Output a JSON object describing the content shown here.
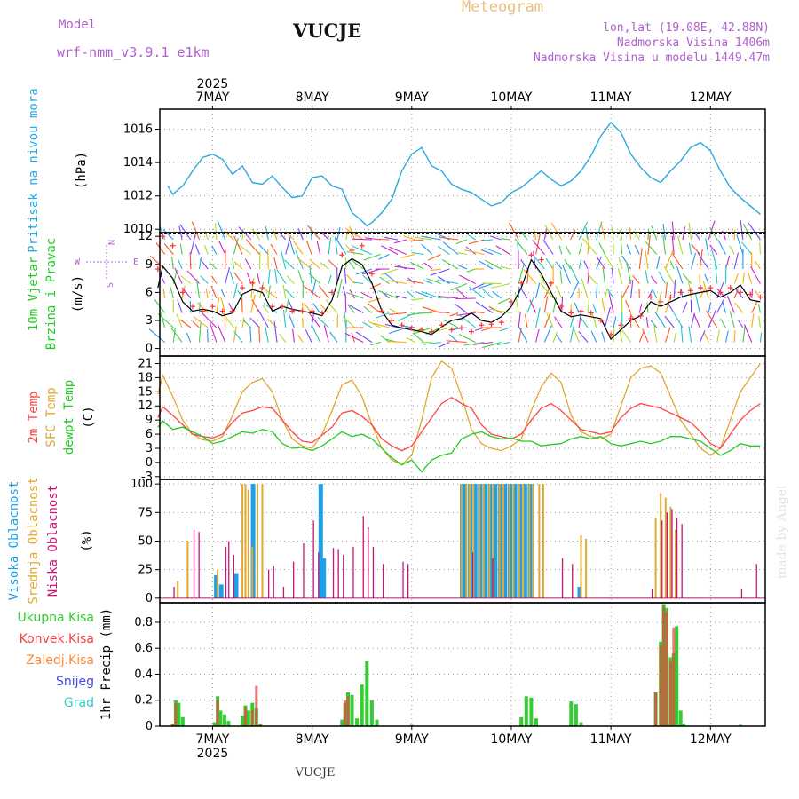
{
  "header": {
    "model_label": "Model",
    "model_name": "wrf-nmm_v3.9.1 e1km",
    "station": "VUCJE",
    "product": "Meteogram",
    "coords": "lon,lat (19.08E, 42.88N)",
    "elevation": "Nadmorska Visina 1406m",
    "elevation_model": "Nadmorska Visina u modelu 1449.47m",
    "footer_station": "VUCJE",
    "credit": "made by Angel"
  },
  "colors": {
    "pressure": "#29a9e0",
    "wind_speed": "#000000",
    "gust": "#ff3333",
    "temp2m": "#ff4444",
    "sfc_temp": "#e0a830",
    "dewpoint": "#22cc22",
    "high_cloud": "#1ea0e8",
    "mid_cloud": "#e0a830",
    "low_cloud": "#cc1177",
    "total_precip": "#33cc33",
    "conv_precip": "#ee4444",
    "frozen_precip": "#ff8833",
    "snow": "#4444ee",
    "hail": "#33cccc"
  },
  "chart_data": [
    {
      "type": "line",
      "panel": "pressure",
      "ylabel": "Pritisak na nivou mora",
      "units": "(hPa)",
      "ylim": [
        1009.8,
        1017.2
      ],
      "yticks": [
        1010,
        1012,
        1014,
        1016
      ],
      "x": [
        6.55,
        6.6,
        6.7,
        6.8,
        6.9,
        7.0,
        7.1,
        7.2,
        7.3,
        7.4,
        7.5,
        7.6,
        7.7,
        7.8,
        7.9,
        8.0,
        8.1,
        8.2,
        8.3,
        8.4,
        8.5,
        8.55,
        8.6,
        8.7,
        8.8,
        8.9,
        9.0,
        9.1,
        9.2,
        9.3,
        9.4,
        9.5,
        9.6,
        9.7,
        9.8,
        9.9,
        10.0,
        10.1,
        10.2,
        10.3,
        10.4,
        10.5,
        10.6,
        10.7,
        10.8,
        10.9,
        11.0,
        11.1,
        11.2,
        11.3,
        11.4,
        11.5,
        11.6,
        11.7,
        11.8,
        11.9,
        12.0,
        12.1,
        12.2,
        12.3,
        12.4,
        12.5
      ],
      "values": [
        1012.6,
        1012.1,
        1012.6,
        1013.5,
        1014.3,
        1014.5,
        1014.2,
        1013.3,
        1013.8,
        1012.8,
        1012.7,
        1013.2,
        1012.5,
        1011.9,
        1012.0,
        1013.1,
        1013.2,
        1012.6,
        1012.4,
        1011.0,
        1010.5,
        1010.2,
        1010.4,
        1011.0,
        1011.8,
        1013.5,
        1014.5,
        1014.9,
        1013.8,
        1013.5,
        1012.7,
        1012.4,
        1012.2,
        1011.8,
        1011.4,
        1011.6,
        1012.2,
        1012.5,
        1013.0,
        1013.5,
        1013.0,
        1012.6,
        1012.9,
        1013.5,
        1014.4,
        1015.6,
        1016.4,
        1015.8,
        1014.5,
        1013.7,
        1013.1,
        1012.8,
        1013.5,
        1014.1,
        1014.9,
        1015.2,
        1014.7,
        1013.5,
        1012.5,
        1011.9,
        1011.4,
        1010.9
      ]
    },
    {
      "type": "line",
      "panel": "wind",
      "ylabel": "10m Vjetar",
      "ylabel2": "Brzina i Pravac",
      "units": "(m/s)",
      "compass": [
        "N",
        "W",
        "E",
        "S"
      ],
      "ylim": [
        -0.8,
        12.4
      ],
      "yticks": [
        0,
        3,
        6,
        9,
        12
      ],
      "x": [
        6.45,
        6.5,
        6.6,
        6.7,
        6.8,
        6.9,
        7.0,
        7.1,
        7.2,
        7.3,
        7.4,
        7.5,
        7.6,
        7.7,
        7.8,
        7.9,
        8.0,
        8.1,
        8.2,
        8.3,
        8.4,
        8.5,
        8.6,
        8.7,
        8.8,
        8.9,
        9.0,
        9.1,
        9.2,
        9.3,
        9.4,
        9.5,
        9.6,
        9.7,
        9.8,
        9.9,
        10.0,
        10.1,
        10.2,
        10.3,
        10.4,
        10.5,
        10.6,
        10.7,
        10.8,
        10.9,
        11.0,
        11.1,
        11.2,
        11.3,
        11.4,
        11.5,
        11.6,
        11.7,
        11.8,
        11.9,
        12.0,
        12.1,
        12.2,
        12.3,
        12.4,
        12.5
      ],
      "series": [
        {
          "role": "speed",
          "values": [
            6.5,
            8.8,
            7.5,
            5.0,
            4.0,
            4.2,
            4.0,
            3.5,
            3.8,
            5.8,
            6.3,
            6.0,
            4.0,
            4.5,
            4.2,
            4.0,
            3.8,
            3.5,
            5.2,
            8.8,
            9.6,
            9.0,
            7.0,
            4.0,
            2.5,
            2.2,
            2.0,
            1.8,
            1.5,
            2.3,
            3.0,
            3.2,
            3.8,
            3.0,
            2.8,
            3.4,
            4.5,
            6.5,
            9.5,
            8.0,
            6.0,
            4.0,
            3.4,
            3.6,
            3.4,
            3.2,
            1.0,
            2.0,
            3.0,
            3.5,
            5.0,
            4.5,
            5.0,
            5.5,
            5.8,
            6.0,
            6.2,
            5.5,
            6.0,
            6.8,
            5.2,
            5.0
          ]
        },
        {
          "role": "gust",
          "values": [
            8.5,
            12.0,
            11.0,
            6.0,
            4.5,
            4.0,
            4.5,
            4.0,
            4.0,
            6.5,
            7.0,
            6.5,
            4.5,
            4.5,
            4.0,
            4.0,
            4.0,
            3.8,
            6.0,
            10.0,
            10.5,
            11.0,
            8.0,
            4.0,
            3.0,
            2.5,
            2.2,
            2.0,
            1.8,
            2.5,
            2.0,
            2.2,
            1.8,
            2.5,
            2.6,
            2.8,
            5.0,
            7.0,
            10.0,
            9.5,
            7.0,
            4.5,
            3.8,
            4.0,
            3.8,
            3.0,
            1.5,
            2.5,
            3.2,
            3.5,
            5.5,
            5.0,
            5.5,
            6.0,
            6.2,
            6.5,
            6.5,
            6.0,
            6.5,
            6.0,
            5.8,
            5.5
          ]
        }
      ]
    },
    {
      "type": "line",
      "panel": "temperature",
      "ylabel_lines": [
        "2m Temp",
        "SFC Temp",
        "dewpt Temp"
      ],
      "units": "(C)",
      "ylim": [
        -3.6,
        22.6
      ],
      "yticks": [
        -3,
        0,
        3,
        6,
        9,
        12,
        15,
        18,
        21
      ],
      "x": [
        6.45,
        6.5,
        6.6,
        6.7,
        6.8,
        6.9,
        7.0,
        7.1,
        7.2,
        7.3,
        7.4,
        7.5,
        7.6,
        7.7,
        7.8,
        7.9,
        8.0,
        8.1,
        8.2,
        8.3,
        8.4,
        8.5,
        8.6,
        8.7,
        8.8,
        8.9,
        9.0,
        9.1,
        9.2,
        9.3,
        9.4,
        9.5,
        9.6,
        9.7,
        9.8,
        9.9,
        10.0,
        10.1,
        10.2,
        10.3,
        10.4,
        10.5,
        10.6,
        10.7,
        10.8,
        10.9,
        11.0,
        11.1,
        11.2,
        11.3,
        11.4,
        11.5,
        11.6,
        11.7,
        11.8,
        11.9,
        12.0,
        12.1,
        12.2,
        12.3,
        12.4,
        12.5
      ],
      "series": [
        {
          "name": "2m Temp",
          "values": [
            9.5,
            11.8,
            10.0,
            8.0,
            6.0,
            5.5,
            5.2,
            6.0,
            8.5,
            10.5,
            11.0,
            11.8,
            11.5,
            9.0,
            6.5,
            4.5,
            4.2,
            5.8,
            7.5,
            10.5,
            11.0,
            9.8,
            8.0,
            5.0,
            3.5,
            2.5,
            3.5,
            6.5,
            9.5,
            12.5,
            13.8,
            12.5,
            11.5,
            8.0,
            6.0,
            5.5,
            5.0,
            6.0,
            9.0,
            11.5,
            12.5,
            11.0,
            9.0,
            7.0,
            6.5,
            6.0,
            6.5,
            9.5,
            11.5,
            12.5,
            12.0,
            11.5,
            10.5,
            9.5,
            8.5,
            6.5,
            4.0,
            3.0,
            6.0,
            9.0,
            11.0,
            12.5
          ]
        },
        {
          "name": "SFC Temp",
          "values": [
            14.5,
            18.5,
            14.0,
            9.0,
            6.0,
            4.8,
            4.5,
            5.5,
            10.0,
            15.0,
            17.0,
            17.8,
            15.0,
            9.0,
            5.0,
            3.5,
            3.0,
            6.0,
            11.0,
            16.5,
            17.5,
            14.0,
            8.0,
            3.0,
            0.5,
            -0.5,
            1.5,
            9.0,
            18.0,
            21.5,
            20.0,
            14.0,
            7.0,
            4.0,
            3.0,
            2.5,
            3.5,
            5.0,
            11.0,
            16.0,
            19.0,
            17.0,
            10.0,
            6.5,
            5.5,
            5.0,
            6.0,
            12.0,
            18.0,
            20.0,
            20.5,
            19.0,
            14.0,
            9.0,
            6.0,
            3.0,
            1.5,
            3.0,
            9.0,
            15.0,
            18.0,
            21.0
          ]
        },
        {
          "name": "dewpt Temp",
          "values": [
            7.5,
            8.8,
            7.0,
            7.5,
            6.5,
            5.5,
            4.0,
            4.5,
            5.5,
            6.5,
            6.2,
            7.0,
            6.5,
            4.0,
            3.0,
            3.2,
            2.5,
            3.5,
            5.0,
            6.5,
            5.5,
            6.0,
            5.0,
            3.0,
            1.0,
            -0.5,
            0.5,
            -2.0,
            0.5,
            1.5,
            2.0,
            5.0,
            6.0,
            6.5,
            5.5,
            5.0,
            5.2,
            4.5,
            4.5,
            3.5,
            3.8,
            4.0,
            5.0,
            5.5,
            5.0,
            5.5,
            4.0,
            3.5,
            4.0,
            4.5,
            4.0,
            4.5,
            5.5,
            5.5,
            5.0,
            4.5,
            3.0,
            1.5,
            2.5,
            4.0,
            3.5,
            3.5
          ]
        }
      ]
    },
    {
      "type": "bar",
      "panel": "clouds",
      "ylabel_lines": [
        "Visoka Oblacnost",
        "Srednja Oblacnost",
        "Niska Oblacnost"
      ],
      "units": "(%)",
      "ylim": [
        -4,
        104
      ],
      "yticks": [
        0,
        25,
        50,
        75,
        100
      ],
      "series": [
        {
          "name": "Visoka Oblacnost",
          "x": [
            7.05,
            7.1,
            7.25,
            7.42,
            8.1,
            8.13,
            9.52,
            9.55,
            9.6,
            9.65,
            9.7,
            9.75,
            9.8,
            9.85,
            9.9,
            9.95,
            10.0,
            10.05,
            10.1,
            10.15,
            10.2,
            10.7
          ],
          "values": [
            20,
            12,
            22,
            100,
            100,
            35,
            100,
            100,
            100,
            100,
            100,
            100,
            100,
            100,
            100,
            100,
            100,
            100,
            100,
            100,
            100,
            10
          ]
        },
        {
          "name": "Srednja Oblacnost",
          "x": [
            6.65,
            6.75,
            7.05,
            7.3,
            7.33,
            7.36,
            7.4,
            7.45,
            7.5,
            9.5,
            9.55,
            9.58,
            9.62,
            9.68,
            9.72,
            9.78,
            9.82,
            9.88,
            9.92,
            9.98,
            10.02,
            10.08,
            10.12,
            10.18,
            10.22,
            10.28,
            10.32,
            10.7,
            10.75,
            11.45,
            11.5,
            11.55,
            11.6,
            11.65
          ],
          "values": [
            15,
            50,
            25,
            100,
            100,
            95,
            45,
            100,
            100,
            100,
            100,
            100,
            100,
            100,
            100,
            100,
            100,
            100,
            100,
            100,
            100,
            100,
            100,
            100,
            100,
            100,
            100,
            55,
            52,
            70,
            92,
            88,
            80,
            60
          ]
        },
        {
          "name": "Niska Oblacnost",
          "x": [
            6.6,
            6.8,
            6.85,
            7.12,
            7.15,
            7.2,
            7.55,
            7.6,
            7.7,
            7.8,
            7.9,
            8.0,
            8.05,
            8.2,
            8.25,
            8.3,
            8.4,
            8.5,
            8.55,
            8.6,
            8.7,
            8.9,
            8.95,
            9.6,
            9.8,
            10.5,
            10.6,
            11.4,
            11.5,
            11.55,
            11.6,
            11.65,
            11.7,
            12.3,
            12.45
          ],
          "values": [
            10,
            60,
            58,
            45,
            50,
            38,
            25,
            28,
            10,
            32,
            48,
            68,
            40,
            44,
            43,
            38,
            45,
            72,
            62,
            45,
            30,
            32,
            30,
            40,
            35,
            35,
            30,
            8,
            68,
            75,
            78,
            70,
            65,
            8,
            30
          ]
        }
      ]
    },
    {
      "type": "bar",
      "panel": "precipitation",
      "ylabel": "1hr Precip (mm)",
      "legend": [
        "Ukupna Kisa",
        "Konvek.Kisa",
        "Zaledj.Kisa",
        "Snijeg",
        "Grad"
      ],
      "ylim": [
        0,
        0.95
      ],
      "yticks": [
        0,
        0.2,
        0.4,
        0.6,
        0.8
      ],
      "yticklabels": [
        "0",
        "0.2",
        "0.4",
        "0.6",
        "0.8"
      ],
      "series": [
        {
          "name": "Ukupna Kisa",
          "x": [
            6.6,
            6.63,
            6.66,
            6.7,
            7.02,
            7.05,
            7.08,
            7.12,
            7.16,
            7.3,
            7.33,
            7.36,
            7.4,
            7.44,
            7.48,
            8.3,
            8.33,
            8.36,
            8.4,
            8.45,
            8.5,
            8.55,
            8.6,
            8.65,
            9.0,
            10.1,
            10.15,
            10.2,
            10.25,
            10.6,
            10.65,
            10.7,
            11.45,
            11.5,
            11.53,
            11.56,
            11.6,
            11.63,
            11.66,
            11.7,
            11.73,
            12.3
          ],
          "values": [
            0.02,
            0.2,
            0.18,
            0.07,
            0.03,
            0.23,
            0.12,
            0.09,
            0.04,
            0.08,
            0.16,
            0.12,
            0.18,
            0.14,
            0.02,
            0.05,
            0.18,
            0.26,
            0.24,
            0.06,
            0.32,
            0.5,
            0.2,
            0.05,
            0.01,
            0.07,
            0.23,
            0.22,
            0.06,
            0.19,
            0.17,
            0.03,
            0.26,
            0.65,
            0.94,
            0.91,
            0.53,
            0.56,
            0.77,
            0.12,
            0.02,
            0.01
          ]
        },
        {
          "name": "Konvek.Kisa",
          "x": [
            6.6,
            6.63,
            7.05,
            7.33,
            7.4,
            7.44,
            7.48,
            8.33,
            8.36,
            11.45,
            11.5,
            11.53,
            11.56,
            11.6,
            11.63
          ],
          "values": [
            0.02,
            0.18,
            0.2,
            0.14,
            0.12,
            0.31,
            0.02,
            0.2,
            0.23,
            0.26,
            0.62,
            0.92,
            0.88,
            0.5,
            0.76
          ]
        }
      ]
    }
  ],
  "time_axis": {
    "year": "2025",
    "days": [
      "7MAY",
      "8MAY",
      "9MAY",
      "10MAY",
      "11MAY",
      "12MAY"
    ],
    "start": 6.47,
    "end": 12.55
  }
}
